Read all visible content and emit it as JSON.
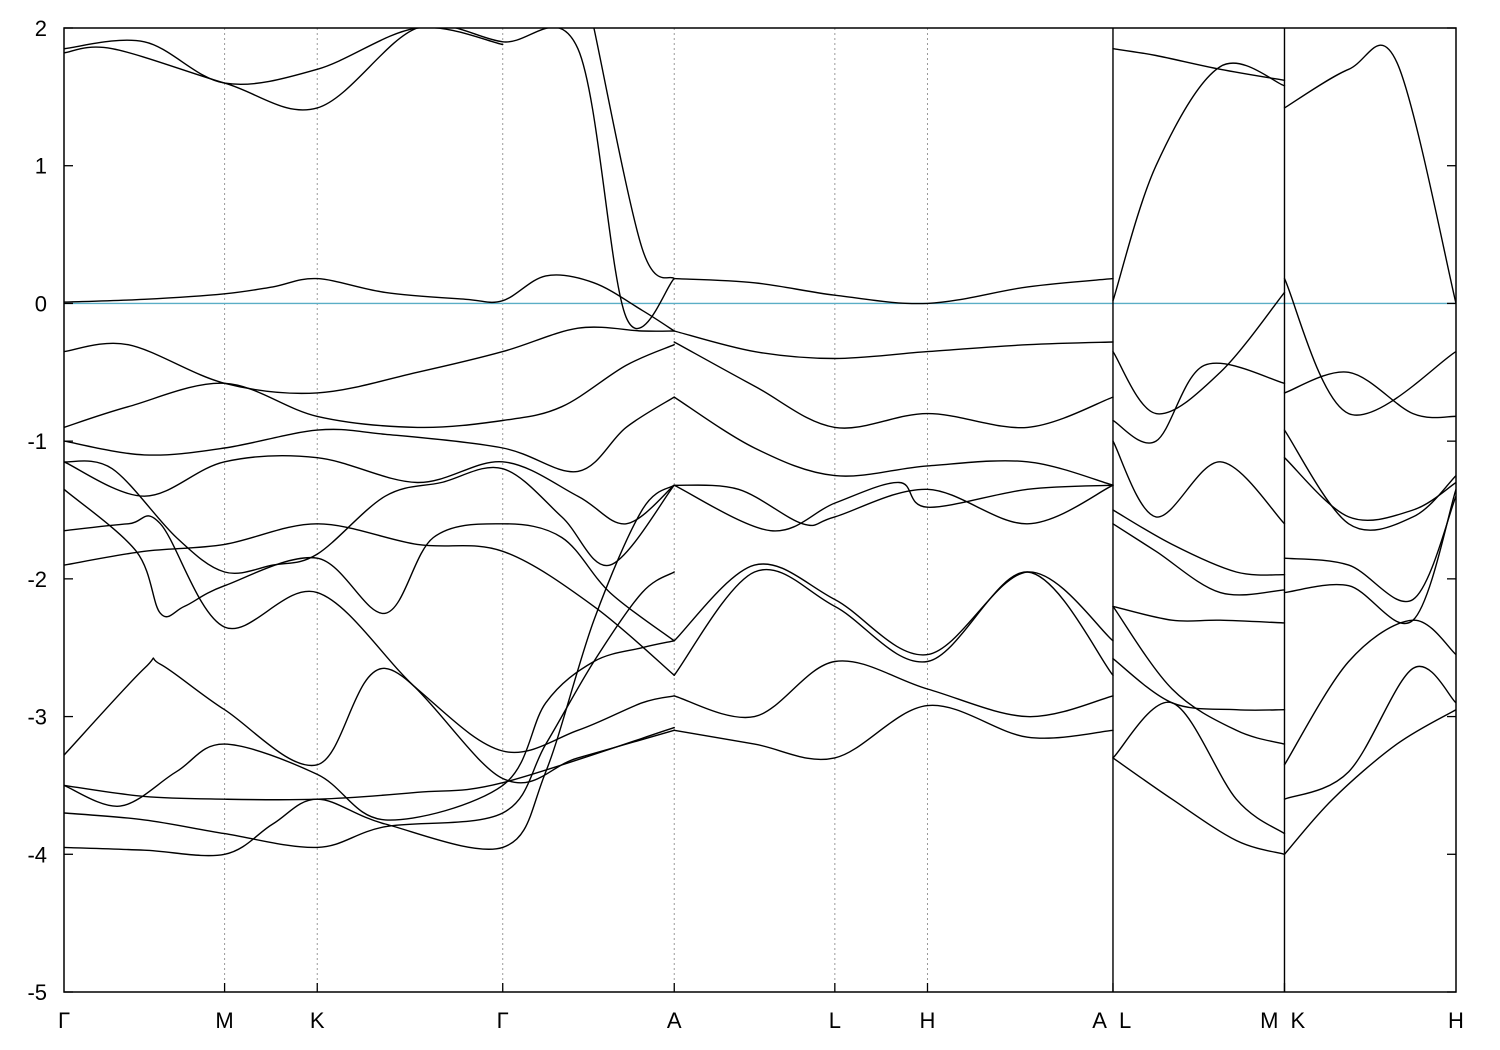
{
  "chart_data": {
    "type": "line",
    "title": "",
    "xlabel": "",
    "ylabel": "",
    "ylim": [
      -5,
      2
    ],
    "yticks": [
      {
        "value": 2,
        "label": "2"
      },
      {
        "value": 1,
        "label": "1"
      },
      {
        "value": 0,
        "label": "0"
      },
      {
        "value": -1,
        "label": "-1"
      },
      {
        "value": -2,
        "label": "-2"
      },
      {
        "value": -3,
        "label": "-3"
      },
      {
        "value": -4,
        "label": "-4"
      },
      {
        "value": -5,
        "label": "-5"
      }
    ],
    "kpoints": [
      {
        "label": "Γ",
        "x": 0.0
      },
      {
        "label": "M",
        "x": 1.0
      },
      {
        "label": "K",
        "x": 1.577
      },
      {
        "label": "Γ",
        "x": 2.732
      },
      {
        "label": "A",
        "x": 3.8
      },
      {
        "label": "L",
        "x": 4.8
      },
      {
        "label": "H",
        "x": 5.377
      },
      {
        "label": "A",
        "x": 6.532
      },
      {
        "label": "L",
        "x": 6.532
      },
      {
        "label": "M",
        "x": 7.6
      },
      {
        "label": "K",
        "x": 7.6
      },
      {
        "label": "H",
        "x": 8.668
      }
    ],
    "path_breaks": [
      6.532,
      7.6
    ],
    "fermi_level": 0,
    "fermi_color": "#5aaec6",
    "band_color": "#000000",
    "series": [
      {
        "x": [
          0,
          0.5,
          1.0,
          1.3,
          1.577,
          2.0,
          2.5,
          2.732,
          3.0,
          3.3,
          3.6,
          3.8
        ],
        "values": [
          0.01,
          0.03,
          0.07,
          0.12,
          0.18,
          0.08,
          0.03,
          0.02,
          0.2,
          0.15,
          -0.05,
          -0.2
        ]
      },
      {
        "x": [
          0,
          0.4,
          1.0,
          1.577,
          2.2,
          2.732,
          3.2,
          3.6,
          3.8
        ],
        "values": [
          -0.35,
          -0.3,
          -0.58,
          -0.65,
          -0.5,
          -0.35,
          -0.18,
          -0.2,
          -0.2
        ]
      },
      {
        "x": [
          0,
          0.4,
          1.0,
          1.577,
          2.2,
          2.732,
          3.1,
          3.5,
          3.8
        ],
        "values": [
          -0.9,
          -0.75,
          -0.58,
          -0.82,
          -0.9,
          -0.85,
          -0.75,
          -0.45,
          -0.3
        ]
      },
      {
        "x": [
          0,
          0.5,
          1.0,
          1.577,
          2.0,
          2.732,
          3.2,
          3.5,
          3.8
        ],
        "values": [
          -1.0,
          -1.1,
          -1.05,
          -0.92,
          -0.95,
          -1.05,
          -1.22,
          -0.9,
          -0.68
        ]
      },
      {
        "x": [
          0,
          0.5,
          1.0,
          1.577,
          2.2,
          2.732,
          3.2,
          3.5,
          3.8
        ],
        "values": [
          -1.15,
          -1.4,
          -1.15,
          -1.12,
          -1.3,
          -1.15,
          -1.4,
          -1.6,
          -1.32
        ]
      },
      {
        "x": [
          0,
          0.3,
          0.7,
          1.0,
          1.3,
          1.577,
          2.0,
          2.35,
          2.732,
          3.1,
          3.4,
          3.8
        ],
        "values": [
          -1.15,
          -1.2,
          -1.7,
          -1.95,
          -1.9,
          -1.82,
          -1.4,
          -1.3,
          -1.2,
          -1.55,
          -1.9,
          -1.32
        ]
      },
      {
        "x": [
          0,
          0.45,
          0.6,
          0.75,
          1.0,
          1.577,
          2.0,
          2.3,
          2.732,
          3.1,
          3.4,
          3.8
        ],
        "values": [
          -1.35,
          -1.8,
          -2.25,
          -2.2,
          -2.05,
          -1.85,
          -2.25,
          -1.7,
          -1.6,
          -1.7,
          -2.1,
          -2.45
        ]
      },
      {
        "x": [
          0,
          0.5,
          1.0,
          1.577,
          2.2,
          2.732,
          3.3,
          3.8
        ],
        "values": [
          -1.9,
          -1.8,
          -1.75,
          -1.6,
          -1.75,
          -1.8,
          -2.2,
          -2.7
        ]
      },
      {
        "x": [
          0,
          0.4,
          0.6,
          1.0,
          1.577,
          2.2,
          2.732,
          3.2,
          3.6,
          3.8
        ],
        "values": [
          -1.65,
          -1.6,
          -1.6,
          -2.35,
          -2.1,
          -2.8,
          -3.25,
          -3.1,
          -2.9,
          -2.85
        ]
      },
      {
        "x": [
          0,
          0.5,
          0.6,
          1.0,
          1.577,
          2.0,
          2.732,
          3.2,
          3.8
        ],
        "values": [
          -3.28,
          -2.65,
          -2.62,
          -2.95,
          -3.35,
          -2.65,
          -3.45,
          -3.3,
          -3.1
        ]
      },
      {
        "x": [
          0,
          0.35,
          0.7,
          1.0,
          1.577,
          2.0,
          2.732,
          3.0,
          3.3,
          3.6,
          3.8
        ],
        "values": [
          -3.5,
          -3.65,
          -3.4,
          -3.2,
          -3.42,
          -3.75,
          -3.5,
          -2.9,
          -2.6,
          -2.5,
          -2.45
        ]
      },
      {
        "x": [
          0,
          0.5,
          1.0,
          1.577,
          2.2,
          2.732,
          3.8
        ],
        "values": [
          -3.5,
          -3.58,
          -3.6,
          -3.6,
          -3.55,
          -3.48,
          -3.08
        ]
      },
      {
        "x": [
          0,
          0.5,
          1.0,
          1.577,
          2.0,
          2.732,
          3.0,
          3.3,
          3.6,
          3.8
        ],
        "values": [
          -3.7,
          -3.75,
          -3.85,
          -3.95,
          -3.8,
          -3.7,
          -3.2,
          -2.6,
          -2.1,
          -1.95
        ]
      },
      {
        "x": [
          0,
          0.5,
          1.0,
          1.3,
          1.577,
          2.0,
          2.732,
          3.0,
          3.3,
          3.6,
          3.8
        ],
        "values": [
          -3.95,
          -3.97,
          -4.0,
          -3.78,
          -3.6,
          -3.78,
          -3.95,
          -3.4,
          -2.3,
          -1.5,
          -1.32
        ]
      },
      {
        "x": [
          0,
          0.5,
          1.0,
          1.577,
          2.2,
          2.732
        ],
        "values": [
          1.85,
          1.9,
          1.6,
          1.7,
          2.0,
          1.88
        ]
      },
      {
        "x": [
          0,
          0.3,
          1.0,
          1.577,
          2.2,
          2.732,
          3.2,
          3.5,
          3.8
        ],
        "values": [
          1.82,
          1.85,
          1.6,
          1.42,
          2.0,
          1.9,
          1.85,
          -0.1,
          0.18
        ]
      },
      {
        "x": [
          3.3,
          3.6,
          3.8
        ],
        "values": [
          2.0,
          0.4,
          0.18
        ]
      },
      {
        "x": [
          3.8,
          4.3,
          4.8,
          5.377,
          6.0,
          6.532
        ],
        "values": [
          0.18,
          0.15,
          0.06,
          0.0,
          0.12,
          0.18
        ]
      },
      {
        "x": [
          3.8,
          4.3,
          4.8,
          5.377,
          6.0,
          6.532
        ],
        "values": [
          -0.2,
          -0.35,
          -0.4,
          -0.35,
          -0.3,
          -0.28
        ]
      },
      {
        "x": [
          3.8,
          4.3,
          4.8,
          5.377,
          6.0,
          6.532
        ],
        "values": [
          -0.28,
          -0.6,
          -0.9,
          -0.8,
          -0.9,
          -0.68
        ]
      },
      {
        "x": [
          3.8,
          4.3,
          4.8,
          5.377,
          6.0,
          6.532
        ],
        "values": [
          -0.68,
          -1.05,
          -1.25,
          -1.18,
          -1.15,
          -1.32
        ]
      },
      {
        "x": [
          3.8,
          4.2,
          4.6,
          4.8,
          5.377,
          6.0,
          6.532
        ],
        "values": [
          -1.32,
          -1.35,
          -1.6,
          -1.55,
          -1.35,
          -1.6,
          -1.32
        ]
      },
      {
        "x": [
          3.8,
          4.3,
          4.8,
          5.377,
          6.0,
          6.532
        ],
        "values": [
          -2.45,
          -1.9,
          -2.15,
          -2.55,
          -1.95,
          -2.45
        ]
      },
      {
        "x": [
          3.8,
          4.3,
          4.8,
          5.377,
          6.0,
          6.532
        ],
        "values": [
          -2.7,
          -1.95,
          -2.2,
          -2.6,
          -1.95,
          -2.7
        ]
      },
      {
        "x": [
          3.8,
          4.3,
          4.8,
          5.377,
          6.0,
          6.532
        ],
        "values": [
          -2.85,
          -3.0,
          -2.6,
          -2.8,
          -3.0,
          -2.85
        ]
      },
      {
        "x": [
          3.8,
          4.3,
          4.8,
          5.377,
          6.0,
          6.532
        ],
        "values": [
          -3.1,
          -3.2,
          -3.3,
          -2.92,
          -3.15,
          -3.1
        ]
      },
      {
        "x": [
          3.8,
          4.4,
          4.8,
          5.2,
          5.377,
          6.0,
          6.532
        ],
        "values": [
          -1.32,
          -1.65,
          -1.45,
          -1.3,
          -1.48,
          -1.35,
          -1.32
        ]
      },
      {
        "x": [
          6.532,
          6.8,
          7.2,
          7.6
        ],
        "values": [
          0.02,
          1.0,
          1.72,
          1.58
        ]
      },
      {
        "x": [
          6.532,
          6.8,
          7.2,
          7.6
        ],
        "values": [
          1.85,
          1.8,
          1.7,
          1.62
        ]
      },
      {
        "x": [
          6.532,
          6.8,
          7.2,
          7.6
        ],
        "values": [
          -0.35,
          -0.8,
          -0.5,
          0.08
        ]
      },
      {
        "x": [
          6.532,
          6.8,
          7.1,
          7.6
        ],
        "values": [
          -0.85,
          -1.0,
          -0.45,
          -0.58
        ]
      },
      {
        "x": [
          6.532,
          6.8,
          7.2,
          7.6
        ],
        "values": [
          -1.0,
          -1.55,
          -1.15,
          -1.6
        ]
      },
      {
        "x": [
          6.532,
          6.9,
          7.3,
          7.6
        ],
        "values": [
          -1.5,
          -1.75,
          -1.95,
          -1.97
        ]
      },
      {
        "x": [
          6.532,
          6.8,
          7.2,
          7.6
        ],
        "values": [
          -1.6,
          -1.8,
          -2.1,
          -2.08
        ]
      },
      {
        "x": [
          6.532,
          6.9,
          7.2,
          7.6
        ],
        "values": [
          -2.2,
          -2.3,
          -2.3,
          -2.32
        ]
      },
      {
        "x": [
          6.532,
          6.9,
          7.3,
          7.6
        ],
        "values": [
          -2.58,
          -2.9,
          -2.95,
          -2.95
        ]
      },
      {
        "x": [
          6.532,
          6.9,
          7.3,
          7.6
        ],
        "values": [
          -3.3,
          -2.9,
          -3.6,
          -3.85
        ]
      },
      {
        "x": [
          6.532,
          6.9,
          7.3,
          7.6
        ],
        "values": [
          -3.3,
          -3.6,
          -3.9,
          -4.0
        ]
      },
      {
        "x": [
          6.532,
          6.9,
          7.3,
          7.6
        ],
        "values": [
          -2.2,
          -2.8,
          -3.1,
          -3.2
        ]
      },
      {
        "x": [
          7.6,
          8.0,
          8.3,
          8.668
        ],
        "values": [
          1.42,
          1.7,
          1.75,
          0.0
        ]
      },
      {
        "x": [
          7.6,
          8.0,
          8.668
        ],
        "values": [
          0.18,
          -0.8,
          -0.35
        ]
      },
      {
        "x": [
          7.6,
          8.0,
          8.4,
          8.668
        ],
        "values": [
          -0.65,
          -0.5,
          -0.8,
          -0.82
        ]
      },
      {
        "x": [
          7.6,
          8.0,
          8.4,
          8.668
        ],
        "values": [
          -0.92,
          -1.6,
          -1.55,
          -1.25
        ]
      },
      {
        "x": [
          7.6,
          8.0,
          8.4,
          8.668
        ],
        "values": [
          -1.12,
          -1.55,
          -1.5,
          -1.3
        ]
      },
      {
        "x": [
          7.6,
          8.0,
          8.4,
          8.668
        ],
        "values": [
          -1.85,
          -1.9,
          -2.15,
          -1.4
        ]
      },
      {
        "x": [
          7.6,
          8.0,
          8.4,
          8.668
        ],
        "values": [
          -2.1,
          -2.05,
          -2.3,
          -1.35
        ]
      },
      {
        "x": [
          7.6,
          8.0,
          8.4,
          8.668
        ],
        "values": [
          -3.35,
          -2.6,
          -2.3,
          -2.55
        ]
      },
      {
        "x": [
          7.6,
          8.0,
          8.4,
          8.668
        ],
        "values": [
          -3.6,
          -3.4,
          -2.65,
          -2.9
        ]
      },
      {
        "x": [
          7.6,
          7.9,
          8.3,
          8.668
        ],
        "values": [
          -4.0,
          -3.6,
          -3.2,
          -2.95
        ]
      }
    ]
  }
}
